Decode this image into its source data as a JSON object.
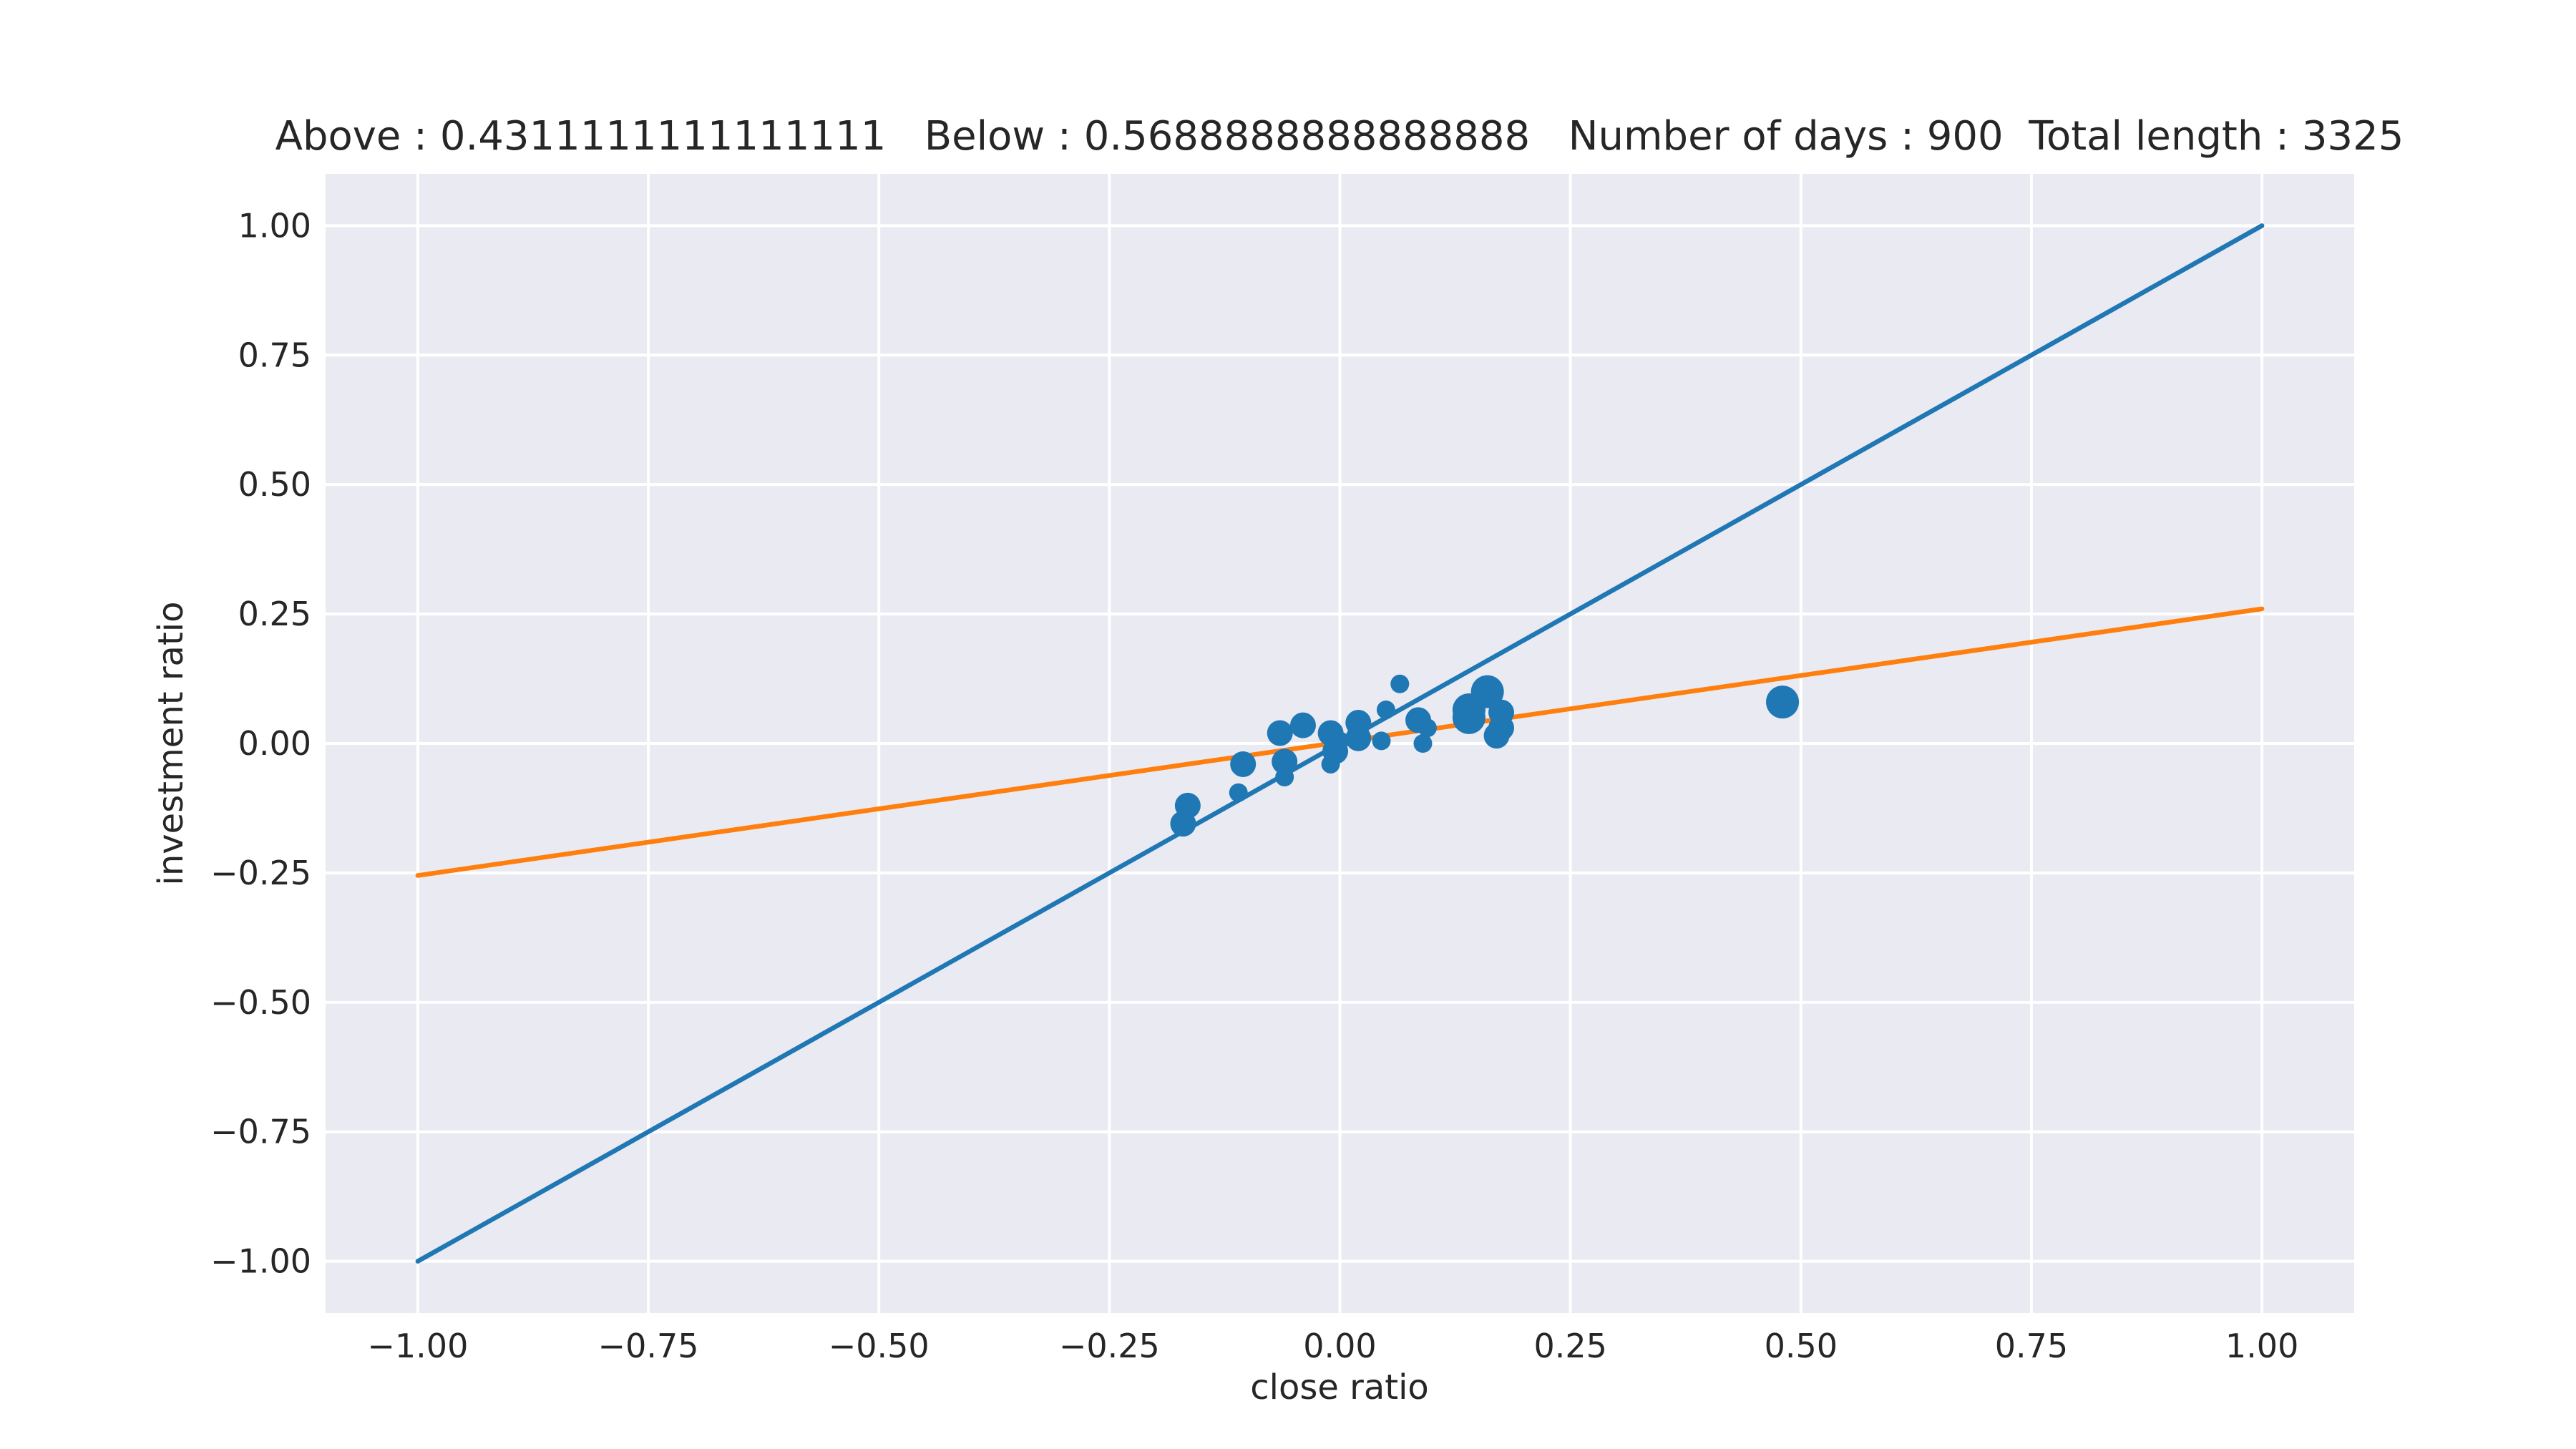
{
  "chart_data": {
    "type": "scatter",
    "title": "Above : 0.4311111111111111   Below : 0.5688888888888888   Number of days : 900  Total length : 3325",
    "xlabel": "close ratio",
    "ylabel": "investment ratio",
    "xlim": [
      -1.1,
      1.1
    ],
    "ylim": [
      -1.1,
      1.1
    ],
    "xticks": [
      -1.0,
      -0.75,
      -0.5,
      -0.25,
      0.0,
      0.25,
      0.5,
      0.75,
      1.0
    ],
    "yticks": [
      -1.0,
      -0.75,
      -0.5,
      -0.25,
      0.0,
      0.25,
      0.5,
      0.75,
      1.0
    ],
    "xtick_labels": [
      "−1.00",
      "−0.75",
      "−0.50",
      "−0.25",
      "0.00",
      "0.25",
      "0.50",
      "0.75",
      "1.00"
    ],
    "ytick_labels": [
      "−1.00",
      "−0.75",
      "−0.50",
      "−0.25",
      "0.00",
      "0.25",
      "0.50",
      "0.75",
      "1.00"
    ],
    "grid": true,
    "background": "#eaeaf2",
    "lines": [
      {
        "color": "#1f77b4",
        "x": [
          -1.0,
          1.0
        ],
        "y": [
          -1.0,
          1.0
        ]
      },
      {
        "color": "#ff7f0e",
        "x": [
          -1.0,
          1.0
        ],
        "y": [
          -0.255,
          0.26
        ]
      }
    ],
    "scatter": {
      "color": "#1f77b4",
      "points": [
        {
          "x": -0.165,
          "y": -0.12,
          "size": 2
        },
        {
          "x": -0.17,
          "y": -0.155,
          "size": 2
        },
        {
          "x": -0.11,
          "y": -0.095,
          "size": 1
        },
        {
          "x": -0.105,
          "y": -0.04,
          "size": 2
        },
        {
          "x": -0.065,
          "y": 0.02,
          "size": 2
        },
        {
          "x": -0.06,
          "y": -0.035,
          "size": 2
        },
        {
          "x": -0.06,
          "y": -0.065,
          "size": 1
        },
        {
          "x": -0.04,
          "y": 0.035,
          "size": 2
        },
        {
          "x": -0.01,
          "y": 0.02,
          "size": 2
        },
        {
          "x": -0.01,
          "y": -0.04,
          "size": 1
        },
        {
          "x": -0.005,
          "y": -0.015,
          "size": 2
        },
        {
          "x": 0.0,
          "y": 0.005,
          "size": 1
        },
        {
          "x": 0.02,
          "y": 0.04,
          "size": 2
        },
        {
          "x": 0.02,
          "y": 0.01,
          "size": 2
        },
        {
          "x": 0.045,
          "y": 0.005,
          "size": 1
        },
        {
          "x": 0.05,
          "y": 0.065,
          "size": 1
        },
        {
          "x": 0.065,
          "y": 0.115,
          "size": 1
        },
        {
          "x": 0.085,
          "y": 0.045,
          "size": 2
        },
        {
          "x": 0.09,
          "y": 0.0,
          "size": 1
        },
        {
          "x": 0.095,
          "y": 0.03,
          "size": 1
        },
        {
          "x": 0.14,
          "y": 0.05,
          "size": 3
        },
        {
          "x": 0.14,
          "y": 0.065,
          "size": 3
        },
        {
          "x": 0.16,
          "y": 0.1,
          "size": 3
        },
        {
          "x": 0.17,
          "y": 0.015,
          "size": 2
        },
        {
          "x": 0.175,
          "y": 0.03,
          "size": 2
        },
        {
          "x": 0.175,
          "y": 0.06,
          "size": 2
        },
        {
          "x": 0.48,
          "y": 0.08,
          "size": 3
        }
      ]
    }
  }
}
